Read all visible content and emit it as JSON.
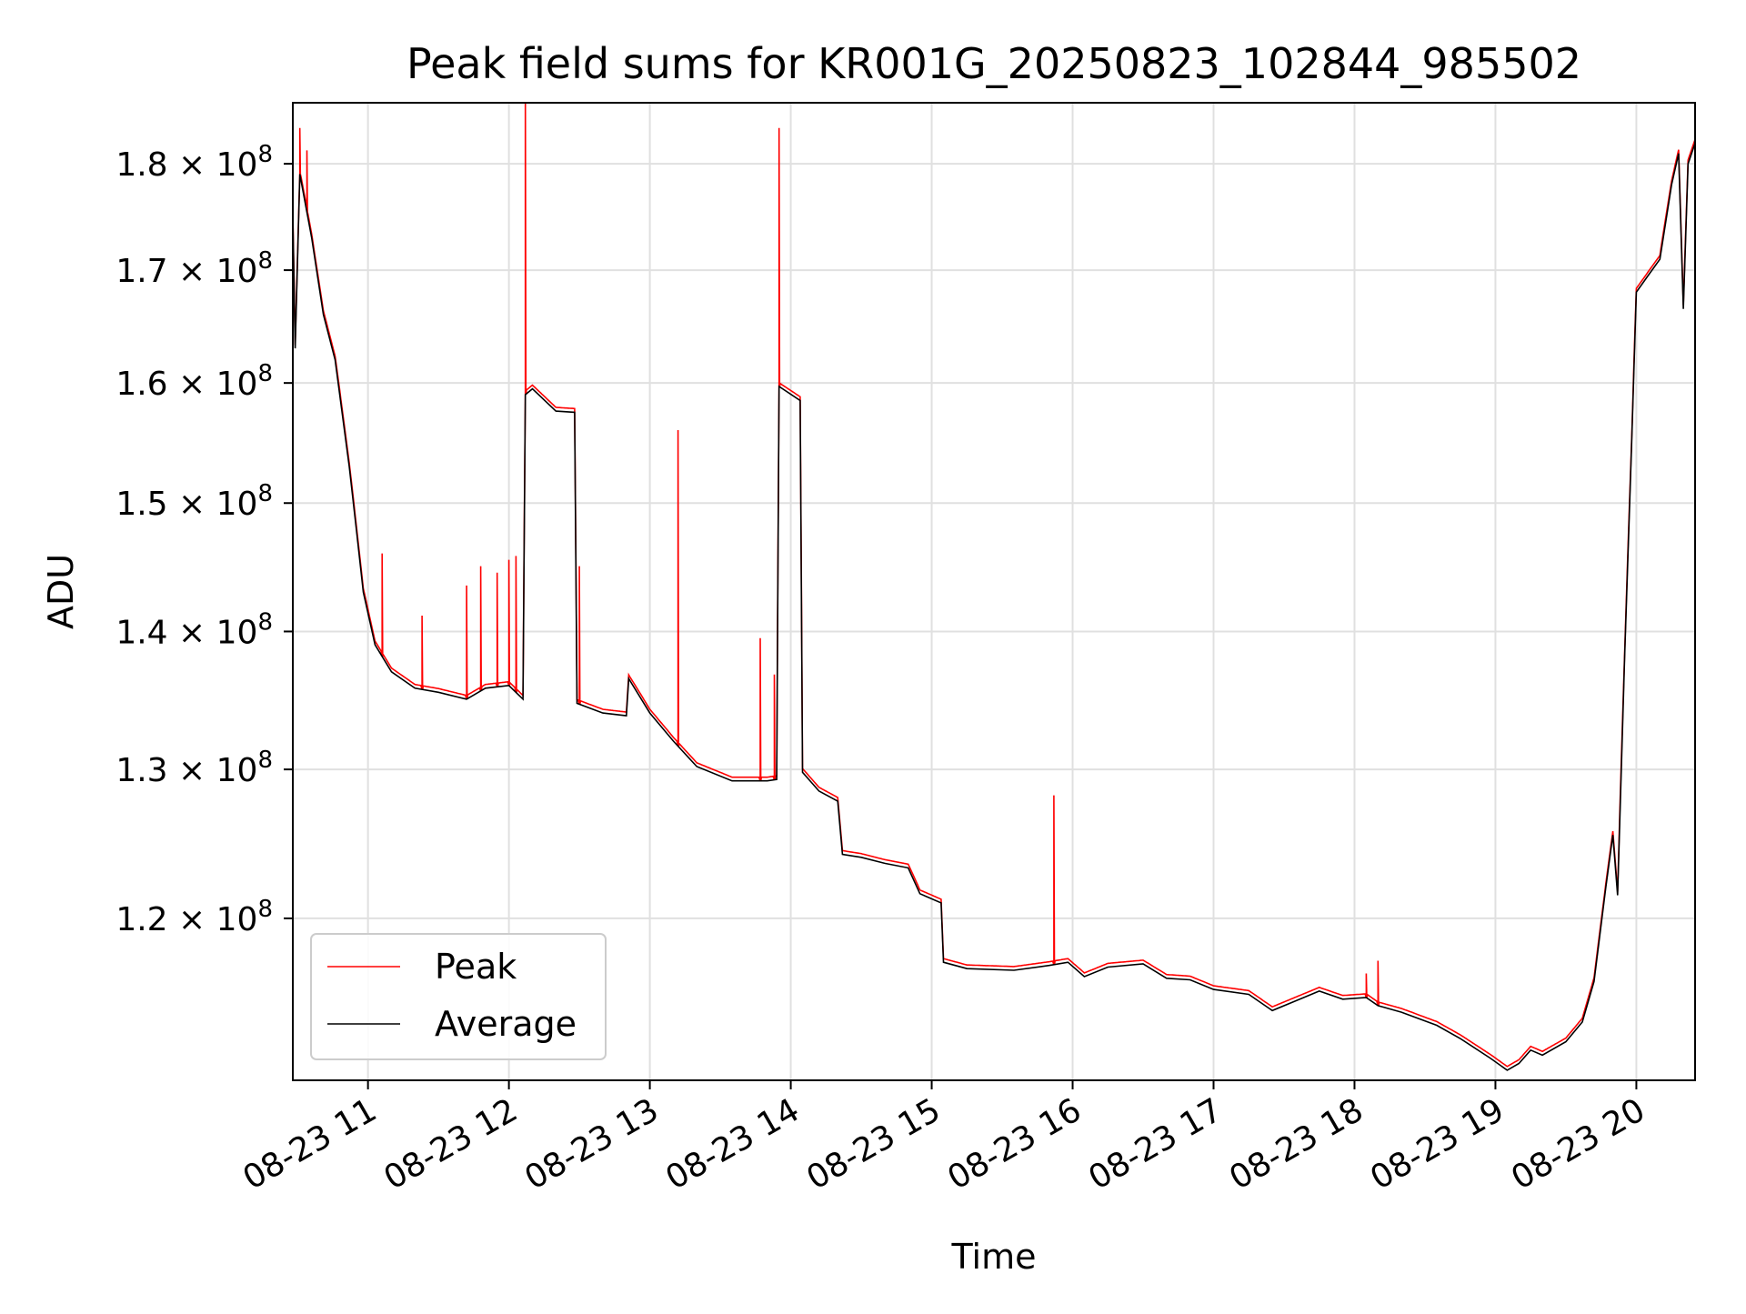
{
  "chart_data": {
    "type": "line",
    "title": "Peak field sums for KR001G_20250823_102844_985502",
    "xlabel": "Time",
    "ylabel": "ADU",
    "yscale": "log",
    "xlim": [
      "2025-08-23 10:28",
      "2025-08-23 20:25"
    ],
    "ylim": [
      110000000,
      186000000
    ],
    "grid": true,
    "legend_position": "lower-left",
    "x_ticks": [
      {
        "time": "2025-08-23 11:00",
        "label": "08-23 11"
      },
      {
        "time": "2025-08-23 12:00",
        "label": "08-23 12"
      },
      {
        "time": "2025-08-23 13:00",
        "label": "08-23 13"
      },
      {
        "time": "2025-08-23 14:00",
        "label": "08-23 14"
      },
      {
        "time": "2025-08-23 15:00",
        "label": "08-23 15"
      },
      {
        "time": "2025-08-23 16:00",
        "label": "08-23 16"
      },
      {
        "time": "2025-08-23 17:00",
        "label": "08-23 17"
      },
      {
        "time": "2025-08-23 18:00",
        "label": "08-23 18"
      },
      {
        "time": "2025-08-23 19:00",
        "label": "08-23 19"
      },
      {
        "time": "2025-08-23 20:00",
        "label": "08-23 20"
      }
    ],
    "y_ticks": [
      {
        "value": 120000000,
        "mantissa": "1.2",
        "exponent": "8"
      },
      {
        "value": 130000000,
        "mantissa": "1.3",
        "exponent": "8"
      },
      {
        "value": 140000000,
        "mantissa": "1.4",
        "exponent": "8"
      },
      {
        "value": 150000000,
        "mantissa": "1.5",
        "exponent": "8"
      },
      {
        "value": 160000000,
        "mantissa": "1.6",
        "exponent": "8"
      },
      {
        "value": 170000000,
        "mantissa": "1.7",
        "exponent": "8"
      },
      {
        "value": 180000000,
        "mantissa": "1.8",
        "exponent": "8"
      }
    ],
    "series": [
      {
        "name": "Average",
        "color": "#000000",
        "points": [
          [
            "10:28",
            175000000
          ],
          [
            "10:29",
            163000000
          ],
          [
            "10:31",
            179000000
          ],
          [
            "10:36",
            173000000
          ],
          [
            "10:41",
            166000000
          ],
          [
            "10:46",
            162000000
          ],
          [
            "10:52",
            153000000
          ],
          [
            "10:55",
            148000000
          ],
          [
            "10:58",
            143000000
          ],
          [
            "11:03",
            139000000
          ],
          [
            "11:10",
            137000000
          ],
          [
            "11:20",
            135800000
          ],
          [
            "11:30",
            135500000
          ],
          [
            "11:42",
            135000000
          ],
          [
            "11:50",
            135800000
          ],
          [
            "12:00",
            136000000
          ],
          [
            "12:06",
            135000000
          ],
          [
            "12:07",
            159000000
          ],
          [
            "12:10",
            159500000
          ],
          [
            "12:20",
            157600000
          ],
          [
            "12:28",
            157500000
          ],
          [
            "12:29",
            134700000
          ],
          [
            "12:40",
            134000000
          ],
          [
            "12:50",
            133800000
          ],
          [
            "12:51",
            136500000
          ],
          [
            "13:00",
            134000000
          ],
          [
            "13:10",
            132000000
          ],
          [
            "13:20",
            130200000
          ],
          [
            "13:35",
            129200000
          ],
          [
            "13:50",
            129200000
          ],
          [
            "13:54",
            129300000
          ],
          [
            "13:55",
            159700000
          ],
          [
            "14:04",
            158500000
          ],
          [
            "14:05",
            129800000
          ],
          [
            "14:12",
            128500000
          ],
          [
            "14:20",
            127800000
          ],
          [
            "14:22",
            124200000
          ],
          [
            "14:30",
            124000000
          ],
          [
            "14:40",
            123600000
          ],
          [
            "14:50",
            123300000
          ],
          [
            "14:55",
            121600000
          ],
          [
            "15:04",
            121000000
          ],
          [
            "15:05",
            117200000
          ],
          [
            "15:15",
            116800000
          ],
          [
            "15:35",
            116700000
          ],
          [
            "15:50",
            117000000
          ],
          [
            "15:58",
            117200000
          ],
          [
            "16:05",
            116300000
          ],
          [
            "16:15",
            116900000
          ],
          [
            "16:30",
            117100000
          ],
          [
            "16:40",
            116200000
          ],
          [
            "16:50",
            116100000
          ],
          [
            "17:00",
            115500000
          ],
          [
            "17:15",
            115200000
          ],
          [
            "17:25",
            114200000
          ],
          [
            "17:35",
            114800000
          ],
          [
            "17:45",
            115400000
          ],
          [
            "17:55",
            114900000
          ],
          [
            "18:05",
            115000000
          ],
          [
            "18:10",
            114500000
          ],
          [
            "18:20",
            114100000
          ],
          [
            "18:35",
            113300000
          ],
          [
            "18:45",
            112500000
          ],
          [
            "18:58",
            111300000
          ],
          [
            "19:05",
            110600000
          ],
          [
            "19:10",
            111000000
          ],
          [
            "19:15",
            111800000
          ],
          [
            "19:20",
            111500000
          ],
          [
            "19:30",
            112300000
          ],
          [
            "19:37",
            113500000
          ],
          [
            "19:42",
            116000000
          ],
          [
            "19:47",
            122000000
          ],
          [
            "19:50",
            125500000
          ],
          [
            "19:52",
            121500000
          ],
          [
            "19:55",
            138000000
          ],
          [
            "19:58",
            155000000
          ],
          [
            "20:00",
            168000000
          ],
          [
            "20:05",
            169500000
          ],
          [
            "20:10",
            171000000
          ],
          [
            "20:15",
            178000000
          ],
          [
            "20:18",
            181000000
          ],
          [
            "20:20",
            166500000
          ],
          [
            "20:22",
            180000000
          ],
          [
            "20:25",
            182000000
          ]
        ]
      },
      {
        "name": "Peak",
        "color": "#ff0000",
        "spikes": [
          [
            "10:31",
            183500000
          ],
          [
            "10:34",
            181300000
          ],
          [
            "11:06",
            146000000
          ],
          [
            "11:23",
            141200000
          ],
          [
            "11:42",
            143500000
          ],
          [
            "11:48",
            145000000
          ],
          [
            "11:55",
            144500000
          ],
          [
            "12:00",
            145500000
          ],
          [
            "12:03",
            145800000
          ],
          [
            "12:07",
            187000000
          ],
          [
            "12:30",
            145000000
          ],
          [
            "13:12",
            156000000
          ],
          [
            "13:47",
            139500000
          ],
          [
            "13:53",
            136800000
          ],
          [
            "13:55",
            183500000
          ],
          [
            "15:52",
            128200000
          ],
          [
            "18:05",
            116500000
          ],
          [
            "18:10",
            117300000
          ]
        ]
      }
    ]
  },
  "legend": {
    "peak_label": "Peak",
    "average_label": "Average"
  }
}
